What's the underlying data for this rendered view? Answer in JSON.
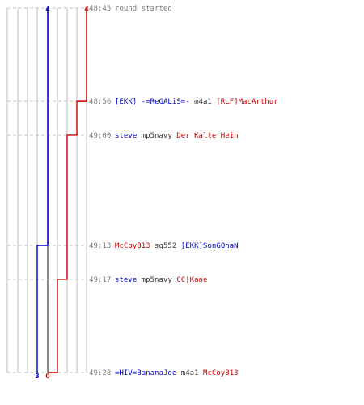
{
  "colors": {
    "blue": "#0000cc",
    "red": "#cc0000",
    "grid": "#bdbdbd",
    "center": "#555555",
    "guide": "#c4c4c4",
    "time": "#7a7a7a",
    "dark": "#333333"
  },
  "chart_data": {
    "type": "line",
    "title": "",
    "xlabel": "",
    "ylabel": "",
    "start_scores": {
      "blue": 4,
      "red": 4
    },
    "final_scores": {
      "blue": 3,
      "red": 0
    },
    "events": [
      {
        "time": "48:45",
        "message": "round started"
      },
      {
        "time": "48:56",
        "killer": "[EKK] -=ReGALiS=-",
        "killer_team": "blue",
        "weapon": "m4a1",
        "victim": "[RLF]MacArthur",
        "victim_team": "red",
        "blue_after": 4,
        "red_after": 3
      },
      {
        "time": "49:00",
        "killer": "steve",
        "killer_team": "blue",
        "weapon": "mp5navy",
        "victim": "Der Kalte Hein",
        "victim_team": "red",
        "blue_after": 4,
        "red_after": 2
      },
      {
        "time": "49:13",
        "killer": "McCoy813",
        "killer_team": "red",
        "weapon": "sg552",
        "victim": "[EKK]SonGOhaN",
        "victim_team": "blue",
        "blue_after": 3,
        "red_after": 2
      },
      {
        "time": "49:17",
        "killer": "steve",
        "killer_team": "blue",
        "weapon": "mp5navy",
        "victim": "CC|Kane",
        "victim_team": "red",
        "blue_after": 3,
        "red_after": 1
      },
      {
        "time": "49:28",
        "killer": "=HIV=BananaJoe",
        "killer_team": "blue",
        "weapon": "m4a1",
        "victim": "McCoy813",
        "victim_team": "red",
        "blue_after": 3,
        "red_after": 0
      }
    ]
  }
}
